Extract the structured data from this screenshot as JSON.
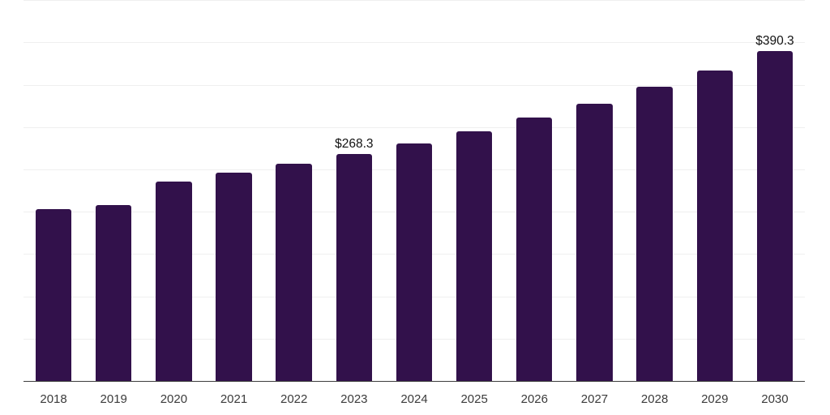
{
  "chart_data": {
    "type": "bar",
    "title": "",
    "xlabel": "",
    "ylabel": "",
    "categories": [
      "2018",
      "2019",
      "2020",
      "2021",
      "2022",
      "2023",
      "2024",
      "2025",
      "2026",
      "2027",
      "2028",
      "2029",
      "2030"
    ],
    "values": [
      203.2,
      208.0,
      235.7,
      246.3,
      256.8,
      268.3,
      281.0,
      295.1,
      311.1,
      328.0,
      347.4,
      367.3,
      390.3
    ],
    "ylim": [
      0,
      450
    ],
    "grid_step": 50,
    "grid": "horizontal-only",
    "legend_position": "none",
    "y_tick_labels_visible": false,
    "data_labels": [
      {
        "category": "2023",
        "text": "$268.3"
      },
      {
        "category": "2030",
        "text": "$390.3"
      }
    ],
    "colors": {
      "bar": "#32114b",
      "gridline": "#efefef",
      "axis_line": "#3d3d3d",
      "data_label_text": "#131313",
      "tick_label_text": "#3b3b3b",
      "background": "#ffffff"
    }
  }
}
